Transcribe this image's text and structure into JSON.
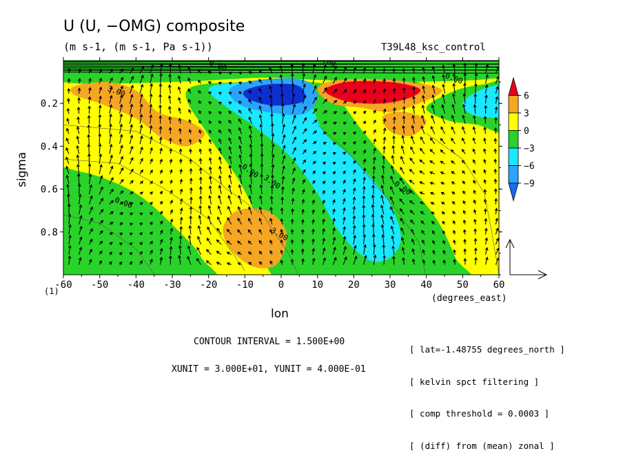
{
  "title": "U (U, −OMG) composite",
  "units": "(m s-1, (m s-1, Pa s-1))",
  "run_name": "T39L48_ksc_control",
  "level_tag": "(1)",
  "contour_interval_text": "CONTOUR INTERVAL = 1.500E+00",
  "vector_units_text": "XUNIT = 3.000E+01, YUNIT = 4.000E-01",
  "notes": [
    "[ lat=-1.48755 degrees_north ]",
    "[ kelvin spct filtering ]",
    "[ comp threshold = 0.0003 ]",
    "[ (diff) from (mean) zonal ]"
  ],
  "chart_data": {
    "type": "heatmap",
    "title": "U (U, −OMG) composite",
    "subtitle": "(m s-1, (m s-1, Pa s-1))",
    "xlabel": "lon",
    "x_units": "(degrees_east)",
    "ylabel": "sigma",
    "xlim": [
      -60,
      60
    ],
    "ylim": [
      1.0,
      0.0
    ],
    "x_ticks": [
      -60,
      -50,
      -40,
      -30,
      -20,
      -10,
      0,
      10,
      20,
      30,
      40,
      50,
      60
    ],
    "y_ticks": [
      0.2,
      0.4,
      0.6,
      0.8
    ],
    "x_tick_labels": [
      "-60",
      "-50",
      "-40",
      "-30",
      "-20",
      "-10",
      "0",
      "10",
      "20",
      "30",
      "40",
      "50",
      "60"
    ],
    "y_tick_labels": [
      "0.2",
      "0.4",
      "0.6",
      "0.8"
    ],
    "contour_labels": [
      "3.00",
      "0.00",
      "0.00",
      "-3.00",
      "0.00",
      "3.00",
      "0.00",
      "0.00",
      "0.00"
    ],
    "colorbar": {
      "levels": [
        -9,
        -6,
        -3,
        0,
        3,
        6
      ],
      "tick_labels": [
        "6",
        "3",
        "0",
        "−3",
        "−6",
        "−9"
      ],
      "colors": {
        "below_-9": "#1a6cf0",
        "-9_-6": "#2aa5ff",
        "-6_-3": "#19e8ff",
        "-3_0": "#2ad32a",
        "0_3": "#ffff00",
        "3_6": "#f5a623",
        "above_6": "#e8001b",
        "strong_negative": "#0f2ecf"
      }
    },
    "features": [
      {
        "kind": "max",
        "lon": 22,
        "sigma": 0.17,
        "value": 7
      },
      {
        "kind": "min",
        "lon": -2,
        "sigma": 0.17,
        "value": -10
      },
      {
        "kind": "max",
        "lon": -45,
        "sigma": 0.22,
        "value": 4
      },
      {
        "kind": "max",
        "lon": -5,
        "sigma": 0.82,
        "value": 4.5
      },
      {
        "kind": "min",
        "lon": 20,
        "sigma": 0.7,
        "value": -7
      }
    ],
    "vectors": {
      "xunit": 30,
      "yunit": 0.4
    }
  }
}
